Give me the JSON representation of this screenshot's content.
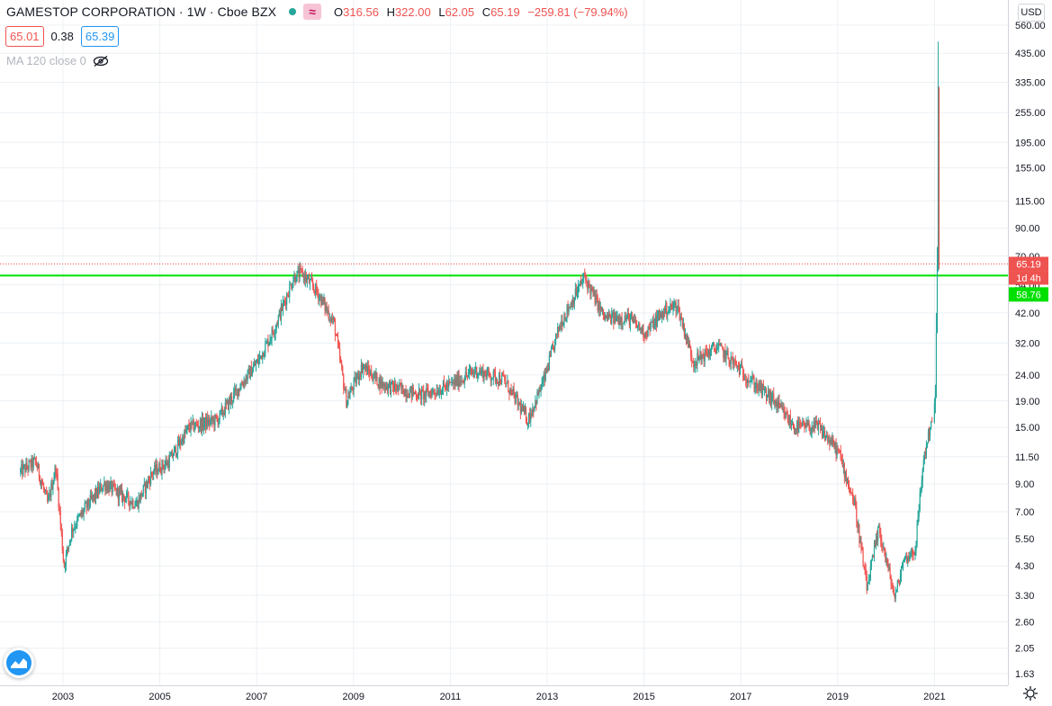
{
  "header": {
    "symbol": "GAMESTOP CORPORATION",
    "separator_1": "·",
    "interval": "1W",
    "separator_2": "·",
    "exchange": "Cboe BZX",
    "wave_glyph": "≈",
    "ohlc": {
      "o_label": "O",
      "o_value": "316.56",
      "h_label": "H",
      "h_value": "322.00",
      "l_label": "L",
      "l_value": "62.05",
      "c_label": "C",
      "c_value": "65.19",
      "change": "−259.81 (−79.94%)"
    }
  },
  "bid_ask": {
    "bid": "65.01",
    "spread": "0.38",
    "ask": "65.39"
  },
  "indicator": {
    "label": "MA 120 close 0"
  },
  "currency": "USD",
  "price_tags": {
    "last_price": "65.19",
    "countdown": "1d 4h",
    "line_price": "58.76"
  },
  "colors": {
    "up": "#26a69a",
    "down": "#ef5350",
    "hline": "#00e000",
    "grid": "#ecf0f4",
    "axis_text": "#131722"
  },
  "icons": [
    "status-dot-icon",
    "wave-icon",
    "eye-off-icon",
    "tradingview-logo-icon",
    "settings-icon"
  ],
  "chart_data": {
    "type": "candlestick",
    "scale": "log",
    "y_ticks": [
      "560.00",
      "435.00",
      "335.00",
      "255.00",
      "195.00",
      "155.00",
      "115.00",
      "90.00",
      "70.00",
      "54.00",
      "42.00",
      "32.00",
      "24.00",
      "19.00",
      "15.00",
      "11.50",
      "9.00",
      "7.00",
      "5.50",
      "4.30",
      "3.30",
      "2.60",
      "2.05",
      "1.63"
    ],
    "x_ticks": [
      "2003",
      "2005",
      "2007",
      "2009",
      "2011",
      "2013",
      "2015",
      "2017",
      "2019",
      "2021"
    ],
    "ylim": [
      1.55,
      700
    ],
    "xlim": [
      "2001-12",
      "2022-09"
    ],
    "horizontal_line": 58.76,
    "last_price": 65.19,
    "series": [
      {
        "keypoints": [
          [
            "2002-02",
            10.0
          ],
          [
            "2002-06",
            11.0
          ],
          [
            "2002-09",
            7.5
          ],
          [
            "2002-11",
            10.5
          ],
          [
            "2003-01",
            4.3
          ],
          [
            "2003-03",
            6.0
          ],
          [
            "2003-07",
            7.5
          ],
          [
            "2003-11",
            9.0
          ],
          [
            "2004-04",
            8.0
          ],
          [
            "2004-07",
            7.5
          ],
          [
            "2004-11",
            10.0
          ],
          [
            "2005-03",
            11.0
          ],
          [
            "2005-08",
            15.0
          ],
          [
            "2006-03",
            16.0
          ],
          [
            "2006-08",
            21.0
          ],
          [
            "2007-01",
            27.0
          ],
          [
            "2007-05",
            36.0
          ],
          [
            "2007-10",
            58.0
          ],
          [
            "2007-12",
            60.0
          ],
          [
            "2008-04",
            50.0
          ],
          [
            "2008-08",
            38.0
          ],
          [
            "2008-11",
            19.0
          ],
          [
            "2009-03",
            26.0
          ],
          [
            "2009-08",
            22.0
          ],
          [
            "2010-01",
            21.0
          ],
          [
            "2010-06",
            20.0
          ],
          [
            "2011-01",
            22.0
          ],
          [
            "2011-07",
            25.0
          ],
          [
            "2012-02",
            23.0
          ],
          [
            "2012-08",
            16.0
          ],
          [
            "2012-12",
            23.0
          ],
          [
            "2013-04",
            38.0
          ],
          [
            "2013-10",
            58.0
          ],
          [
            "2014-03",
            40.0
          ],
          [
            "2014-09",
            40.0
          ],
          [
            "2015-01",
            35.0
          ],
          [
            "2015-06",
            43.0
          ],
          [
            "2015-09",
            45.0
          ],
          [
            "2016-01",
            27.0
          ],
          [
            "2016-07",
            31.0
          ],
          [
            "2017-03",
            23.0
          ],
          [
            "2017-09",
            19.0
          ],
          [
            "2018-02",
            15.0
          ],
          [
            "2018-08",
            15.0
          ],
          [
            "2019-01",
            12.0
          ],
          [
            "2019-05",
            7.5
          ],
          [
            "2019-08",
            3.5
          ],
          [
            "2019-11",
            6.0
          ],
          [
            "2020-03",
            3.2
          ],
          [
            "2020-05",
            4.5
          ],
          [
            "2020-08",
            5.0
          ],
          [
            "2020-10",
            11.0
          ],
          [
            "2020-12",
            16.0
          ],
          [
            "2021-01-08",
            18.0
          ],
          [
            "2021-01-15",
            35.0
          ],
          [
            "2021-01-22",
            65.0
          ],
          [
            "2021-01-29",
            325.0
          ],
          [
            "2021-02-05",
            65.19
          ]
        ]
      }
    ]
  }
}
